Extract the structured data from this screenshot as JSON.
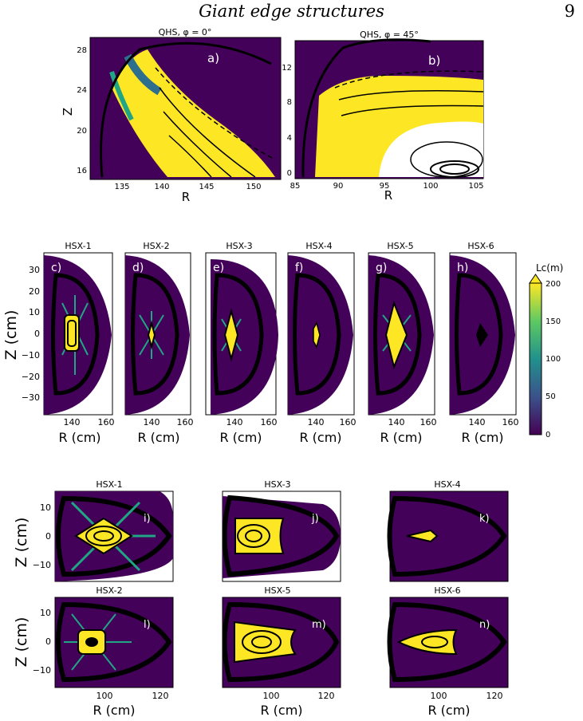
{
  "header": {
    "title": "Giant edge structures",
    "page_number": "9"
  },
  "colors": {
    "background": "#44015a",
    "mid": "#2e6f8e",
    "bright": "#21a685",
    "high": "#fde725",
    "line": "#000000"
  },
  "figure_top": {
    "panels": [
      {
        "title": "QHS, φ = 0°",
        "label": "a)",
        "xlabel": "R",
        "ylabel": "Z",
        "xticks": [
          "135",
          "140",
          "145",
          "150"
        ],
        "yticks": [
          "16",
          "20",
          "24",
          "28"
        ]
      },
      {
        "title": "QHS, φ = 45°",
        "label": "b)",
        "xlabel": "R",
        "ylabel": "",
        "xticks": [
          "85",
          "90",
          "95",
          "100",
          "105"
        ],
        "yticks": [
          "0",
          "4",
          "8",
          "12"
        ]
      }
    ]
  },
  "figure_middle": {
    "ylabel": "Z (cm)",
    "yticks": [
      "30",
      "20",
      "10",
      "0",
      "−10",
      "−20",
      "−30"
    ],
    "xticks": [
      "140",
      "160"
    ],
    "xlabel": "R (cm)",
    "panels": [
      {
        "title": "HSX-1",
        "label": "c)"
      },
      {
        "title": "HSX-2",
        "label": "d)"
      },
      {
        "title": "HSX-3",
        "label": "e)"
      },
      {
        "title": "HSX-4",
        "label": "f)"
      },
      {
        "title": "HSX-5",
        "label": "g)"
      },
      {
        "title": "HSX-6",
        "label": "h)"
      }
    ],
    "colorbar": {
      "label": "Lc(m)",
      "ticks": [
        "200",
        "150",
        "100",
        "50",
        "0"
      ],
      "min": 0,
      "max": 200
    }
  },
  "figure_bottom": {
    "ylabel": "Z (cm)",
    "xlabel": "R (cm)",
    "yticks": [
      "10",
      "0",
      "−10"
    ],
    "xticks": [
      "100",
      "120"
    ],
    "panels": [
      {
        "title": "HSX-1",
        "label": "i)"
      },
      {
        "title": "HSX-3",
        "label": "j)"
      },
      {
        "title": "HSX-4",
        "label": "k)"
      },
      {
        "title": "HSX-2",
        "label": "l)"
      },
      {
        "title": "HSX-5",
        "label": "m)"
      },
      {
        "title": "HSX-6",
        "label": "n)"
      }
    ]
  }
}
